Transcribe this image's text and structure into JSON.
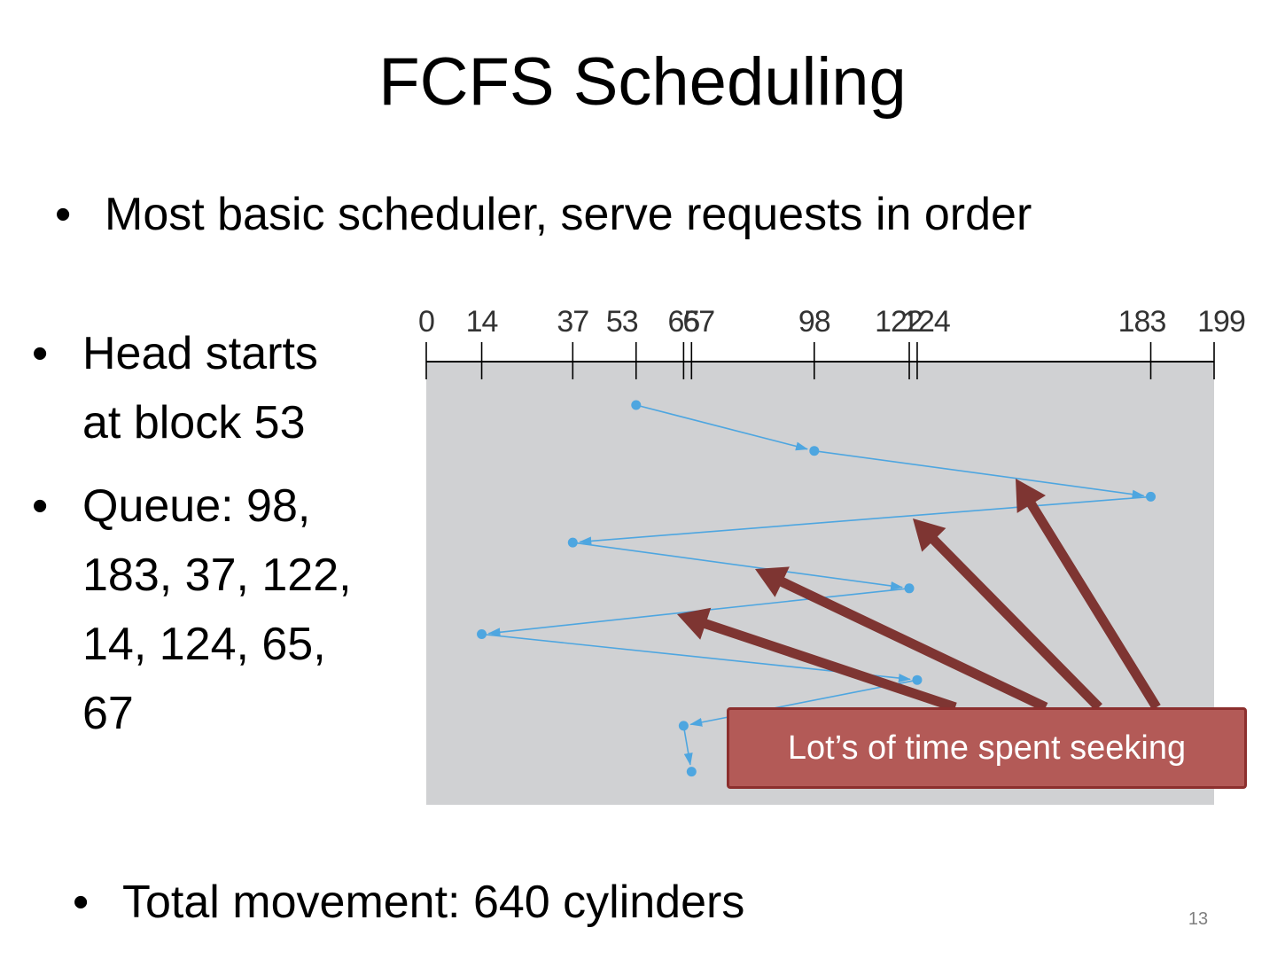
{
  "title": "FCFS Scheduling",
  "bullets": {
    "marker": "•",
    "main": "Most basic scheduler, serve requests in order",
    "head": "Head starts at block 53",
    "queue": "Queue: 98, 183, 37, 122, 14, 124, 65, 67",
    "total": "Total movement: 640 cylinders"
  },
  "diagram": {
    "axis_ticks": [
      "0",
      "14",
      "37",
      "53",
      "65",
      "67",
      "98",
      "122",
      "124",
      "183",
      "199"
    ],
    "axis_range": [
      0,
      199
    ],
    "start_block": 53,
    "visit_order": [
      53,
      98,
      183,
      37,
      122,
      14,
      124,
      65,
      67
    ],
    "colors": {
      "panel": "#d0d1d3",
      "path": "#4ea6e0",
      "arrows": "#7e3532",
      "axis": "#000000"
    }
  },
  "callout": {
    "text": "Lot’s of time spent seeking",
    "fill": "#b35a57",
    "border": "#8c2f2e"
  },
  "slide_number": "13"
}
